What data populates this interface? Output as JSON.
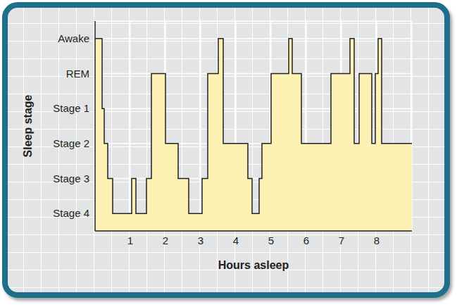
{
  "chart_data": {
    "type": "area",
    "x_label": "Hours asleep",
    "y_label": "Sleep stage",
    "line_style": "step",
    "color": "#fdf1b3",
    "grid": true,
    "x": [
      0,
      0.2,
      0.26,
      0.36,
      0.5,
      1.04,
      1.16,
      1.46,
      1.6,
      2.0,
      2.36,
      2.66,
      3.04,
      3.2,
      3.5,
      3.64,
      4.34,
      4.46,
      4.66,
      4.74,
      5.0,
      5.5,
      5.6,
      5.86,
      6.7,
      7.24,
      7.36,
      7.5,
      7.86,
      7.96,
      8.04,
      8.14,
      9.0
    ],
    "values": [
      5,
      3,
      2,
      1,
      0,
      1,
      0,
      1,
      4,
      2,
      1,
      0,
      1,
      4,
      5,
      2,
      1,
      0,
      1,
      2,
      4,
      5,
      4,
      2,
      4,
      5,
      2,
      4,
      2,
      4,
      5,
      2,
      2
    ],
    "xlim": [
      0,
      9
    ],
    "xticks": [
      1,
      2,
      3,
      4,
      5,
      6,
      7,
      8
    ],
    "ylim": [
      -0.5,
      5.5
    ],
    "yticks": [
      {
        "value": 0,
        "label": "Stage 4"
      },
      {
        "value": 1,
        "label": "Stage 3"
      },
      {
        "value": 2,
        "label": "Stage 2"
      },
      {
        "value": 3,
        "label": "Stage 1"
      },
      {
        "value": 4,
        "label": "REM"
      },
      {
        "value": 5,
        "label": "Awake"
      }
    ]
  }
}
